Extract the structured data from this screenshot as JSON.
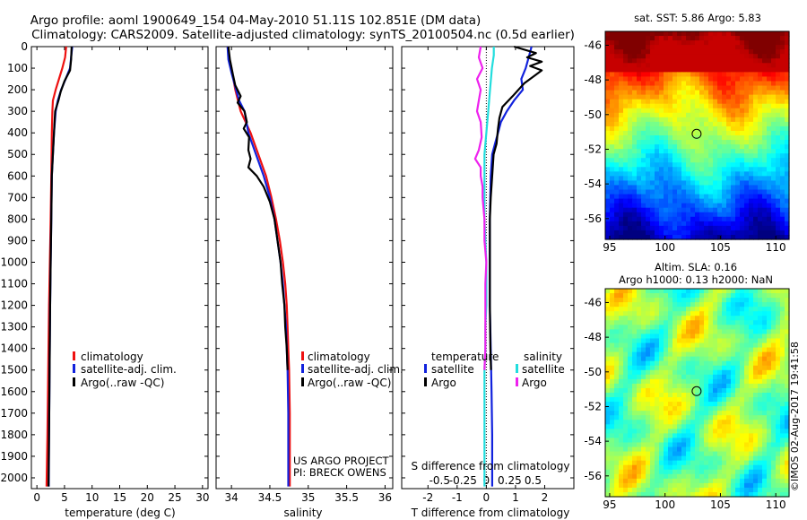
{
  "header": {
    "title_line1": "Argo profile: aoml 1900649_154 04-May-2010 51.11S 102.851E (DM data)",
    "title_line2": "Climatology: CARS2009. Satellite-adjusted climatology: synTS_20100504.nc (0.5d earlier)"
  },
  "footer": {
    "project_line1": "US ARGO PROJECT",
    "project_line2": "PI: BRECK OWENS",
    "imos_stamp": "©IMOS 02-Aug-2017 19:41:58"
  },
  "colors": {
    "climatology": "#ee1111",
    "satellite": "#1122dd",
    "argo": "#000000",
    "s_satellite": "#22dddd",
    "s_argo": "#ee22ee"
  },
  "chart_data": [
    {
      "type": "line",
      "id": "temperature",
      "xlabel": "temperature (deg C)",
      "xlim": [
        -1,
        31
      ],
      "ylim": [
        2050,
        0
      ],
      "xticks": [
        0,
        5,
        10,
        15,
        20,
        25,
        30
      ],
      "yticks": [
        0,
        100,
        200,
        300,
        400,
        500,
        600,
        700,
        800,
        900,
        1000,
        1100,
        1200,
        1300,
        1400,
        1500,
        1600,
        1700,
        1800,
        1900,
        2000
      ],
      "legend": [
        "climatology",
        "satellite-adj. clim.",
        "Argo(..raw -QC)"
      ],
      "series": [
        {
          "name": "climatology",
          "color": "#ee1111",
          "points": [
            [
              5.3,
              0
            ],
            [
              5.1,
              50
            ],
            [
              4.6,
              100
            ],
            [
              3.4,
              200
            ],
            [
              2.9,
              250
            ],
            [
              2.8,
              300
            ],
            [
              2.7,
              400
            ],
            [
              2.6,
              600
            ],
            [
              2.5,
              800
            ],
            [
              2.35,
              1000
            ],
            [
              2.2,
              1200
            ],
            [
              2.05,
              1500
            ],
            [
              1.9,
              1800
            ],
            [
              1.75,
              2040
            ]
          ]
        },
        {
          "name": "satellite-adj. clim.",
          "color": "#1122dd",
          "points": [
            [
              6.4,
              0
            ],
            [
              6.2,
              50
            ],
            [
              6.0,
              100
            ],
            [
              5.2,
              150
            ],
            [
              4.4,
              200
            ],
            [
              3.8,
              250
            ],
            [
              3.4,
              300
            ],
            [
              3.1,
              400
            ],
            [
              2.9,
              500
            ],
            [
              2.7,
              600
            ],
            [
              2.6,
              800
            ],
            [
              2.5,
              1000
            ],
            [
              2.4,
              1200
            ],
            [
              2.3,
              1500
            ],
            [
              2.2,
              1800
            ],
            [
              2.15,
              2040
            ]
          ]
        },
        {
          "name": "Argo(..raw -QC)",
          "color": "#000000",
          "points": [
            [
              6.3,
              0
            ],
            [
              6.2,
              60
            ],
            [
              6.0,
              110
            ],
            [
              5.0,
              160
            ],
            [
              4.3,
              210
            ],
            [
              3.9,
              250
            ],
            [
              3.3,
              300
            ],
            [
              3.1,
              400
            ],
            [
              2.9,
              500
            ],
            [
              2.7,
              600
            ],
            [
              2.6,
              800
            ],
            [
              2.5,
              1000
            ],
            [
              2.4,
              1200
            ],
            [
              2.3,
              1500
            ],
            [
              2.2,
              1800
            ],
            [
              2.1,
              2040
            ]
          ]
        }
      ]
    },
    {
      "type": "line",
      "id": "salinity",
      "xlabel": "salinity",
      "xlim": [
        33.8,
        36.1
      ],
      "ylim": [
        2050,
        0
      ],
      "xticks": [
        34,
        34.5,
        35,
        35.5,
        36
      ],
      "xticklabels": [
        "34",
        "34.5",
        "35",
        "35.5",
        "36"
      ],
      "legend": [
        "climatology",
        "satellite-adj. clim.",
        "Argo(..raw -QC)"
      ],
      "series": [
        {
          "name": "climatology",
          "color": "#ee1111",
          "points": [
            [
              33.95,
              0
            ],
            [
              33.97,
              50
            ],
            [
              34.0,
              100
            ],
            [
              34.05,
              200
            ],
            [
              34.12,
              300
            ],
            [
              34.25,
              400
            ],
            [
              34.35,
              500
            ],
            [
              34.45,
              600
            ],
            [
              34.52,
              700
            ],
            [
              34.58,
              800
            ],
            [
              34.63,
              900
            ],
            [
              34.67,
              1000
            ],
            [
              34.7,
              1100
            ],
            [
              34.72,
              1200
            ],
            [
              34.73,
              1300
            ],
            [
              34.74,
              1400
            ],
            [
              34.75,
              1500
            ],
            [
              34.76,
              1700
            ],
            [
              34.76,
              1900
            ],
            [
              34.76,
              2040
            ]
          ]
        },
        {
          "name": "satellite-adj. clim.",
          "color": "#1122dd",
          "points": [
            [
              33.95,
              0
            ],
            [
              33.96,
              60
            ],
            [
              34.0,
              120
            ],
            [
              34.06,
              200
            ],
            [
              34.1,
              250
            ],
            [
              34.17,
              300
            ],
            [
              34.22,
              400
            ],
            [
              34.32,
              500
            ],
            [
              34.42,
              600
            ],
            [
              34.5,
              700
            ],
            [
              34.56,
              800
            ],
            [
              34.6,
              900
            ],
            [
              34.64,
              1000
            ],
            [
              34.67,
              1100
            ],
            [
              34.69,
              1200
            ],
            [
              34.71,
              1300
            ],
            [
              34.72,
              1400
            ],
            [
              34.73,
              1500
            ],
            [
              34.74,
              1700
            ],
            [
              34.74,
              1900
            ],
            [
              34.74,
              2040
            ]
          ]
        },
        {
          "name": "Argo(..raw -QC)",
          "color": "#000000",
          "points": [
            [
              33.96,
              0
            ],
            [
              33.98,
              60
            ],
            [
              34.02,
              130
            ],
            [
              34.05,
              180
            ],
            [
              34.12,
              230
            ],
            [
              34.08,
              260
            ],
            [
              34.17,
              300
            ],
            [
              34.2,
              350
            ],
            [
              34.16,
              380
            ],
            [
              34.23,
              420
            ],
            [
              34.22,
              480
            ],
            [
              34.25,
              520
            ],
            [
              34.22,
              560
            ],
            [
              34.33,
              600
            ],
            [
              34.42,
              650
            ],
            [
              34.5,
              720
            ],
            [
              34.56,
              800
            ],
            [
              34.6,
              900
            ],
            [
              34.64,
              1000
            ],
            [
              34.66,
              1100
            ],
            [
              34.69,
              1200
            ],
            [
              34.7,
              1300
            ],
            [
              34.72,
              1400
            ],
            [
              34.73,
              1500
            ]
          ]
        }
      ]
    },
    {
      "type": "line",
      "id": "differences",
      "xlabel": "T difference from climatology",
      "xlabel_top": "S difference from climatology",
      "xlim": [
        -2.9,
        3.0
      ],
      "ylim": [
        2050,
        0
      ],
      "xticks": [
        -2,
        -1,
        0,
        1,
        2
      ],
      "s_xticks": [
        -0.5,
        -0.25,
        0,
        0.25,
        0.5
      ],
      "s_xticklabels": [
        "-0.5",
        "-0.25",
        "0",
        "0.25",
        "0.5"
      ],
      "legend_headers": [
        "temperature",
        "salinity"
      ],
      "legend": {
        "temperature": [
          "satellite",
          "Argo"
        ],
        "salinity": [
          "satellite",
          "Argo"
        ]
      },
      "series": [
        {
          "name": "temperature satellite",
          "color": "#1122dd",
          "points": [
            [
              1.55,
              0
            ],
            [
              1.45,
              50
            ],
            [
              1.35,
              100
            ],
            [
              1.2,
              150
            ],
            [
              1.25,
              200
            ],
            [
              0.95,
              250
            ],
            [
              0.7,
              300
            ],
            [
              0.5,
              350
            ],
            [
              0.4,
              400
            ],
            [
              0.3,
              450
            ],
            [
              0.2,
              500
            ],
            [
              0.15,
              600
            ],
            [
              0.12,
              800
            ],
            [
              0.12,
              1000
            ],
            [
              0.12,
              1200
            ],
            [
              0.15,
              1400
            ],
            [
              0.18,
              1600
            ],
            [
              0.2,
              1800
            ],
            [
              0.2,
              2040
            ]
          ]
        },
        {
          "name": "temperature Argo",
          "color": "#000000",
          "points": [
            [
              0.95,
              0
            ],
            [
              1.7,
              30
            ],
            [
              1.4,
              50
            ],
            [
              1.9,
              70
            ],
            [
              1.5,
              90
            ],
            [
              1.9,
              110
            ],
            [
              1.6,
              140
            ],
            [
              1.3,
              170
            ],
            [
              0.9,
              230
            ],
            [
              0.55,
              280
            ],
            [
              0.45,
              330
            ],
            [
              0.4,
              380
            ],
            [
              0.35,
              450
            ],
            [
              0.25,
              500
            ],
            [
              0.2,
              600
            ],
            [
              0.15,
              700
            ],
            [
              0.12,
              800
            ],
            [
              0.12,
              1000
            ],
            [
              0.12,
              1200
            ],
            [
              0.14,
              1400
            ],
            [
              0.16,
              1500
            ]
          ]
        },
        {
          "name": "salinity satellite",
          "color": "#22dddd",
          "points": [
            [
              0.08,
              0
            ],
            [
              0.08,
              40
            ],
            [
              0.06,
              100
            ],
            [
              0.04,
              200
            ],
            [
              0.02,
              300
            ],
            [
              0.0,
              400
            ],
            [
              -0.02,
              500
            ],
            [
              -0.02,
              600
            ],
            [
              -0.02,
              700
            ],
            [
              -0.02,
              800
            ],
            [
              -0.01,
              900
            ],
            [
              0.0,
              1000
            ],
            [
              0.0,
              1100
            ],
            [
              0.0,
              1200
            ],
            [
              -0.01,
              1300
            ],
            [
              -0.01,
              1400
            ],
            [
              -0.02,
              1500
            ],
            [
              -0.02,
              1600
            ],
            [
              -0.02,
              1700
            ],
            [
              -0.02,
              1800
            ],
            [
              -0.02,
              1900
            ],
            [
              -0.02,
              2040
            ]
          ]
        },
        {
          "name": "salinity Argo",
          "color": "#ee22ee",
          "points": [
            [
              -0.06,
              0
            ],
            [
              -0.08,
              50
            ],
            [
              -0.04,
              100
            ],
            [
              -0.1,
              150
            ],
            [
              -0.06,
              200
            ],
            [
              -0.08,
              250
            ],
            [
              -0.1,
              300
            ],
            [
              -0.06,
              350
            ],
            [
              -0.05,
              420
            ],
            [
              -0.08,
              480
            ],
            [
              -0.12,
              520
            ],
            [
              -0.06,
              560
            ],
            [
              -0.06,
              600
            ],
            [
              -0.04,
              650
            ],
            [
              -0.04,
              700
            ],
            [
              -0.02,
              800
            ],
            [
              -0.02,
              900
            ],
            [
              0.0,
              1000
            ],
            [
              -0.01,
              1100
            ],
            [
              -0.01,
              1200
            ],
            [
              -0.01,
              1300
            ],
            [
              -0.01,
              1400
            ],
            [
              -0.02,
              1500
            ]
          ]
        }
      ]
    },
    {
      "type": "heatmap",
      "id": "sst_map",
      "title": "sat. SST: 5.86 Argo: 5.83",
      "xlim": [
        94.6,
        111.2
      ],
      "ylim": [
        -57.2,
        -45.2
      ],
      "xticks": [
        95,
        100,
        105,
        110
      ],
      "yticks": [
        -46,
        -48,
        -50,
        -52,
        -54,
        -56
      ],
      "marker": {
        "lon": 102.85,
        "lat": -51.11
      },
      "colormap": "jet"
    },
    {
      "type": "heatmap",
      "id": "sla_map",
      "title_line1": "Altim. SLA: 0.16",
      "title_line2": "Argo h1000: 0.13 h2000: NaN",
      "xlim": [
        94.6,
        111.2
      ],
      "ylim": [
        -57.2,
        -45.2
      ],
      "xticks": [
        95,
        100,
        105,
        110
      ],
      "yticks": [
        -46,
        -48,
        -50,
        -52,
        -54,
        -56
      ],
      "marker": {
        "lon": 102.85,
        "lat": -51.11
      },
      "colormap": "jet"
    }
  ]
}
